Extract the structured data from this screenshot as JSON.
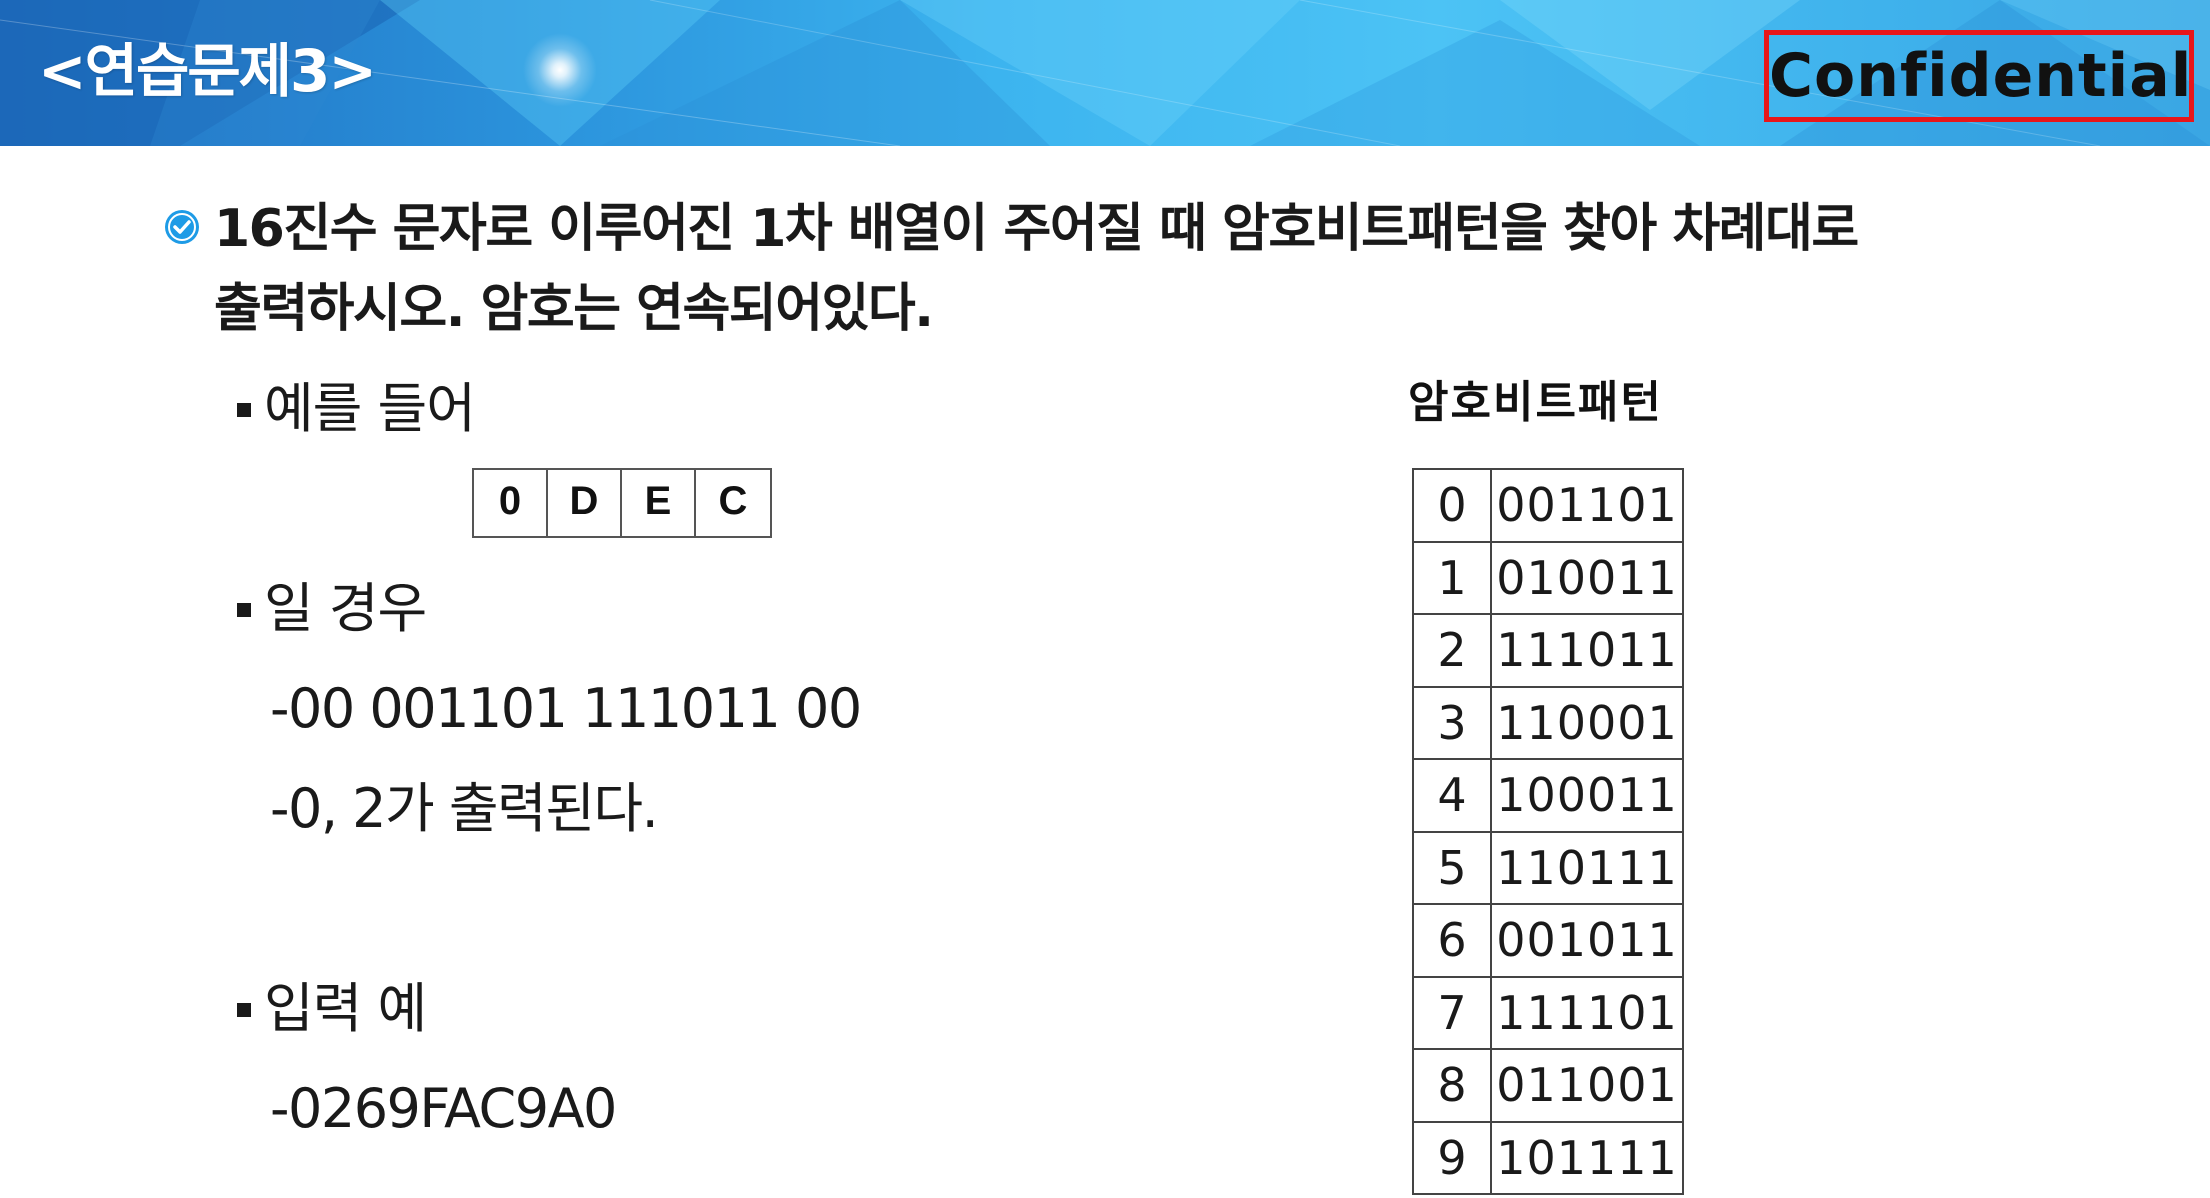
{
  "header": {
    "title": "<연습문제3>",
    "confidential": "Confidential",
    "colors": {
      "banner_start": "#1f6fc0",
      "banner_mid": "#4cc3f5",
      "confidential_border": "#e8161a",
      "check_icon": "#1e9be6"
    }
  },
  "problem": {
    "line1": "16진수 문자로 이루어진 1차 배열이 주어질 때 암호비트패턴을 찾아 차례대로",
    "line2": "출력하시오. 암호는 연속되어있다.",
    "icon": "check-circle-icon"
  },
  "example": {
    "label": "예를 들어",
    "hex_cells": [
      "0",
      "D",
      "E",
      "C"
    ],
    "case_label": "일 경우",
    "bits_line": "-00 001101 111011 00",
    "output_line": "-0, 2가 출력된다."
  },
  "input_example": {
    "label": "입력 예",
    "value": "-0269FAC9A0"
  },
  "pattern_table": {
    "title": "암호비트패턴",
    "rows": [
      {
        "digit": "0",
        "bits": "001101"
      },
      {
        "digit": "1",
        "bits": "010011"
      },
      {
        "digit": "2",
        "bits": "111011"
      },
      {
        "digit": "3",
        "bits": "110001"
      },
      {
        "digit": "4",
        "bits": "100011"
      },
      {
        "digit": "5",
        "bits": "110111"
      },
      {
        "digit": "6",
        "bits": "001011"
      },
      {
        "digit": "7",
        "bits": "111101"
      },
      {
        "digit": "8",
        "bits": "011001"
      },
      {
        "digit": "9",
        "bits": "101111"
      }
    ]
  }
}
